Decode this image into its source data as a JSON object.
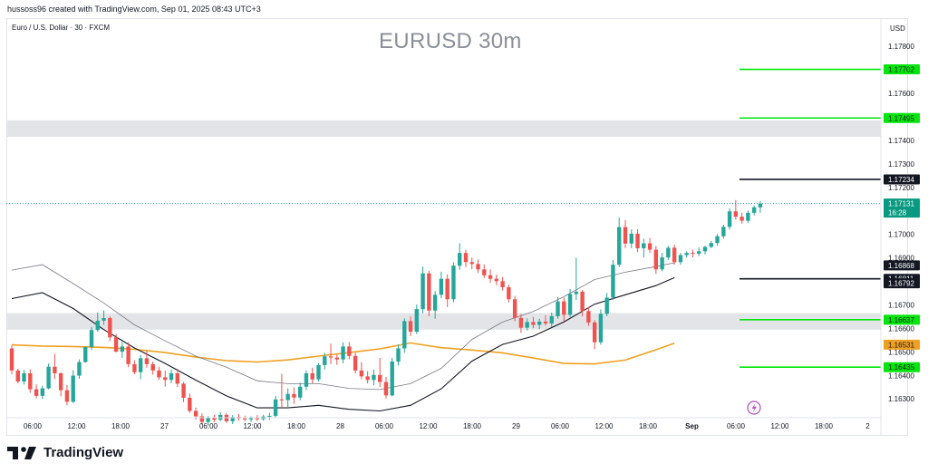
{
  "header": {
    "attribution": "hussoss96 created with TradingView.com, Sep 01, 2025 08:43 UTC+3",
    "symbol": "Euro / U.S. Dollar · 30 · FXCM",
    "title": "EURUSD 30m",
    "currency": "USD",
    "brand": "TradingView"
  },
  "colors": {
    "up": "#26a69a",
    "down": "#ef5350",
    "level_green": "#00e60a",
    "level_black": "#131722",
    "zone": "#e3e4e8",
    "ma_orange": "#f0a020",
    "ma_dark": "#131722",
    "ma_grey": "#787b86",
    "price_tag": "#089981"
  },
  "chart_data": {
    "type": "candlestick",
    "title": "EURUSD 30m",
    "ylim": [
      1.1622,
      1.1792
    ],
    "y_ticks": [
      "1.17800",
      "1.17700",
      "1.17600",
      "1.17500",
      "1.17400",
      "1.17300",
      "1.17200",
      "1.17000",
      "1.16900",
      "1.16700",
      "1.16600",
      "1.16500",
      "1.16400",
      "1.16300"
    ],
    "x_ticks": [
      "06:00",
      "12:00",
      "18:00",
      "27",
      "06:00",
      "12:00",
      "18:00",
      "28",
      "06:00",
      "12:00",
      "18:00",
      "29",
      "06:00",
      "12:00",
      "18:00",
      "Sep",
      "06:00",
      "12:00",
      "18:00",
      "2"
    ],
    "levels": [
      {
        "price": 1.17702,
        "label": "1.17702",
        "style": "green"
      },
      {
        "price": 1.17495,
        "label": "1.17495",
        "style": "green"
      },
      {
        "price": 1.17234,
        "label": "1.17234",
        "style": "black"
      },
      {
        "price": 1.16811,
        "label": "1.16811",
        "style": "black"
      },
      {
        "price": 1.16637,
        "label": "1.16637",
        "style": "green"
      },
      {
        "price": 1.16435,
        "label": "1.16435",
        "style": "green"
      }
    ],
    "zones": [
      {
        "from": 1.17415,
        "to": 1.17485
      },
      {
        "from": 1.16595,
        "to": 1.16665
      }
    ],
    "axis_tags": [
      {
        "price": 1.16868,
        "label": "1.16868",
        "style": "black"
      },
      {
        "price": 1.16792,
        "label": "1.16792",
        "style": "black"
      },
      {
        "price": 1.16531,
        "label": "1.16531",
        "style": "orange"
      }
    ],
    "last_price": {
      "price": 1.17131,
      "label": "1.17131",
      "countdown": "16:28"
    },
    "series": [
      {
        "kind": "ma_orange",
        "points": [
          [
            0,
            1.1653
          ],
          [
            5,
            1.16525
          ],
          [
            10,
            1.16523
          ],
          [
            15,
            1.16519
          ],
          [
            20,
            1.16511
          ],
          [
            25,
            1.16497
          ],
          [
            30,
            1.16478
          ],
          [
            35,
            1.16463
          ],
          [
            40,
            1.16457
          ],
          [
            45,
            1.16466
          ],
          [
            50,
            1.16482
          ],
          [
            55,
            1.16497
          ],
          [
            60,
            1.16513
          ],
          [
            65,
            1.16538
          ],
          [
            70,
            1.16518
          ],
          [
            75,
            1.16508
          ],
          [
            80,
            1.16496
          ],
          [
            85,
            1.16474
          ],
          [
            90,
            1.16451
          ],
          [
            95,
            1.16449
          ],
          [
            100,
            1.16465
          ],
          [
            105,
            1.16509
          ],
          [
            108,
            1.16537
          ]
        ]
      },
      {
        "kind": "ma_dark",
        "points": [
          [
            0,
            1.16727
          ],
          [
            5,
            1.16752
          ],
          [
            10,
            1.16685
          ],
          [
            15,
            1.16595
          ],
          [
            20,
            1.16517
          ],
          [
            25,
            1.16451
          ],
          [
            30,
            1.1638
          ],
          [
            35,
            1.16313
          ],
          [
            40,
            1.16262
          ],
          [
            45,
            1.16262
          ],
          [
            50,
            1.16273
          ],
          [
            55,
            1.16256
          ],
          [
            60,
            1.16249
          ],
          [
            65,
            1.16273
          ],
          [
            70,
            1.16343
          ],
          [
            75,
            1.16461
          ],
          [
            80,
            1.16532
          ],
          [
            85,
            1.16567
          ],
          [
            90,
            1.16628
          ],
          [
            95,
            1.16703
          ],
          [
            100,
            1.16743
          ],
          [
            105,
            1.16782
          ],
          [
            108,
            1.16816
          ]
        ]
      },
      {
        "kind": "ma_grey",
        "points": [
          [
            0,
            1.16848
          ],
          [
            5,
            1.16871
          ],
          [
            10,
            1.16791
          ],
          [
            15,
            1.16708
          ],
          [
            20,
            1.16615
          ],
          [
            25,
            1.16547
          ],
          [
            30,
            1.16482
          ],
          [
            35,
            1.16435
          ],
          [
            40,
            1.16377
          ],
          [
            45,
            1.16365
          ],
          [
            50,
            1.16365
          ],
          [
            55,
            1.16345
          ],
          [
            60,
            1.1634
          ],
          [
            65,
            1.16365
          ],
          [
            70,
            1.1643
          ],
          [
            75,
            1.16553
          ],
          [
            80,
            1.16627
          ],
          [
            85,
            1.16672
          ],
          [
            90,
            1.16735
          ],
          [
            95,
            1.16808
          ],
          [
            100,
            1.16839
          ],
          [
            105,
            1.16863
          ],
          [
            108,
            1.16879
          ]
        ]
      }
    ],
    "candles": [
      [
        1.16515,
        1.16528,
        1.16405,
        1.16421
      ],
      [
        1.16421,
        1.16428,
        1.16366,
        1.16374
      ],
      [
        1.16374,
        1.16423,
        1.16361,
        1.16409
      ],
      [
        1.16409,
        1.16426,
        1.16326,
        1.16341
      ],
      [
        1.16341,
        1.16362,
        1.16302,
        1.16313
      ],
      [
        1.16313,
        1.16357,
        1.16299,
        1.16345
      ],
      [
        1.16345,
        1.16451,
        1.16341,
        1.16437
      ],
      [
        1.16437,
        1.16492,
        1.16384,
        1.16409
      ],
      [
        1.16409,
        1.16413,
        1.16311,
        1.16337
      ],
      [
        1.16337,
        1.16359,
        1.16273,
        1.16288
      ],
      [
        1.16288,
        1.16422,
        1.16283,
        1.16399
      ],
      [
        1.16399,
        1.16468,
        1.16386,
        1.16457
      ],
      [
        1.16457,
        1.16524,
        1.16454,
        1.16521
      ],
      [
        1.16521,
        1.16606,
        1.16508,
        1.16593
      ],
      [
        1.16593,
        1.16668,
        1.16586,
        1.16633
      ],
      [
        1.16633,
        1.16676,
        1.16615,
        1.16644
      ],
      [
        1.16644,
        1.16651,
        1.16545,
        1.16562
      ],
      [
        1.16562,
        1.16576,
        1.16498,
        1.16501
      ],
      [
        1.16501,
        1.16542,
        1.16475,
        1.16523
      ],
      [
        1.16523,
        1.16541,
        1.16435,
        1.16448
      ],
      [
        1.16448,
        1.16465,
        1.16405,
        1.16414
      ],
      [
        1.16414,
        1.16487,
        1.16384,
        1.16473
      ],
      [
        1.16473,
        1.16504,
        1.16433,
        1.16448
      ],
      [
        1.16448,
        1.16459,
        1.16403,
        1.16421
      ],
      [
        1.16421,
        1.16437,
        1.16381,
        1.16392
      ],
      [
        1.16392,
        1.16421,
        1.16352,
        1.16381
      ],
      [
        1.16381,
        1.16425,
        1.16367,
        1.16409
      ],
      [
        1.16409,
        1.16428,
        1.16351,
        1.16365
      ],
      [
        1.16365,
        1.16372,
        1.16286,
        1.16305
      ],
      [
        1.16305,
        1.16323,
        1.16241,
        1.16249
      ],
      [
        1.16249,
        1.16263,
        1.16212,
        1.16226
      ],
      [
        1.16226,
        1.16238,
        1.16191,
        1.16202
      ],
      [
        1.16202,
        1.16227,
        1.16188,
        1.16219
      ],
      [
        1.16219,
        1.16233,
        1.16201,
        1.16211
      ],
      [
        1.16211,
        1.16244,
        1.16206,
        1.16232
      ],
      [
        1.16232,
        1.16239,
        1.16198,
        1.16205
      ],
      [
        1.16205,
        1.16231,
        1.16193,
        1.16223
      ],
      [
        1.16223,
        1.16236,
        1.16209,
        1.16217
      ],
      [
        1.16217,
        1.16229,
        1.16205,
        1.16213
      ],
      [
        1.16213,
        1.16226,
        1.16202,
        1.16219
      ],
      [
        1.16219,
        1.16231,
        1.16206,
        1.16214
      ],
      [
        1.16214,
        1.16232,
        1.16208,
        1.16225
      ],
      [
        1.16225,
        1.16241,
        1.16211,
        1.16228
      ],
      [
        1.16228,
        1.16312,
        1.16219,
        1.16298
      ],
      [
        1.16298,
        1.16407,
        1.16262,
        1.16295
      ],
      [
        1.16295,
        1.16345,
        1.16266,
        1.16321
      ],
      [
        1.16321,
        1.16349,
        1.16279,
        1.16306
      ],
      [
        1.16306,
        1.16369,
        1.16294,
        1.16352
      ],
      [
        1.16352,
        1.16421,
        1.16338,
        1.16409
      ],
      [
        1.16409,
        1.16433,
        1.16366,
        1.16383
      ],
      [
        1.16383,
        1.16452,
        1.16375,
        1.16444
      ],
      [
        1.16444,
        1.16497,
        1.16425,
        1.16481
      ],
      [
        1.16481,
        1.16535,
        1.16448,
        1.16476
      ],
      [
        1.16476,
        1.16488,
        1.16445,
        1.16468
      ],
      [
        1.16468,
        1.16541,
        1.16452,
        1.16523
      ],
      [
        1.16523,
        1.16542,
        1.16469,
        1.16483
      ],
      [
        1.16483,
        1.16496,
        1.16408,
        1.16421
      ],
      [
        1.16421,
        1.16457,
        1.16384,
        1.16396
      ],
      [
        1.16396,
        1.16418,
        1.16366,
        1.16381
      ],
      [
        1.16381,
        1.16425,
        1.16358,
        1.16402
      ],
      [
        1.16402,
        1.16475,
        1.16351,
        1.16372
      ],
      [
        1.16372,
        1.16394,
        1.16302,
        1.16315
      ],
      [
        1.16315,
        1.16474,
        1.16311,
        1.16459
      ],
      [
        1.16459,
        1.16532,
        1.16442,
        1.16515
      ],
      [
        1.16515,
        1.16643,
        1.16496,
        1.16631
      ],
      [
        1.16631,
        1.16651,
        1.16567,
        1.16586
      ],
      [
        1.16586,
        1.16701,
        1.16576,
        1.16682
      ],
      [
        1.16682,
        1.16863,
        1.16665,
        1.16834
      ],
      [
        1.16834,
        1.16845,
        1.16652,
        1.16676
      ],
      [
        1.16676,
        1.16759,
        1.16641,
        1.16743
      ],
      [
        1.16743,
        1.16841,
        1.16728,
        1.16811
      ],
      [
        1.16811,
        1.16829,
        1.16691,
        1.16724
      ],
      [
        1.16724,
        1.16881,
        1.16711,
        1.16867
      ],
      [
        1.16867,
        1.16962,
        1.16849,
        1.16921
      ],
      [
        1.16921,
        1.16934,
        1.16861,
        1.16882
      ],
      [
        1.16882,
        1.16901,
        1.16852,
        1.16874
      ],
      [
        1.16874,
        1.16893,
        1.16836,
        1.16851
      ],
      [
        1.16851,
        1.16872,
        1.16815,
        1.16826
      ],
      [
        1.16826,
        1.16851,
        1.16794,
        1.16811
      ],
      [
        1.16811,
        1.16829,
        1.16784,
        1.16801
      ],
      [
        1.16801,
        1.16818,
        1.16761,
        1.16775
      ],
      [
        1.16775,
        1.16786,
        1.16711,
        1.16724
      ],
      [
        1.16724,
        1.16738,
        1.16631,
        1.16645
      ],
      [
        1.16645,
        1.16661,
        1.16581,
        1.16603
      ],
      [
        1.16603,
        1.16642,
        1.16591,
        1.16627
      ],
      [
        1.16627,
        1.16649,
        1.16601,
        1.16615
      ],
      [
        1.16615,
        1.16641,
        1.16597,
        1.16629
      ],
      [
        1.16629,
        1.16656,
        1.16612,
        1.16621
      ],
      [
        1.16621,
        1.16667,
        1.16606,
        1.16652
      ],
      [
        1.16652,
        1.16734,
        1.16641,
        1.16715
      ],
      [
        1.16715,
        1.16731,
        1.16631,
        1.16658
      ],
      [
        1.16658,
        1.16768,
        1.16649,
        1.16746
      ],
      [
        1.16746,
        1.16901,
        1.16721,
        1.16756
      ],
      [
        1.16756,
        1.16764,
        1.16651,
        1.16674
      ],
      [
        1.16674,
        1.16691,
        1.16611,
        1.16625
      ],
      [
        1.16625,
        1.16635,
        1.16511,
        1.16541
      ],
      [
        1.16541,
        1.16681,
        1.16531,
        1.16662
      ],
      [
        1.16662,
        1.16751,
        1.16652,
        1.16731
      ],
      [
        1.16731,
        1.16891,
        1.16721,
        1.16871
      ],
      [
        1.16871,
        1.17071,
        1.16861,
        1.17031
      ],
      [
        1.17031,
        1.17061,
        1.16942,
        1.16961
      ],
      [
        1.16961,
        1.17021,
        1.16941,
        1.17003
      ],
      [
        1.17003,
        1.17022,
        1.16925,
        1.16941
      ],
      [
        1.16941,
        1.16981,
        1.16902,
        1.16962
      ],
      [
        1.16962,
        1.16985,
        1.16921,
        1.16935
      ],
      [
        1.16935,
        1.16951,
        1.16832,
        1.16851
      ],
      [
        1.16851,
        1.16921,
        1.16843,
        1.16902
      ],
      [
        1.16902,
        1.16951,
        1.16891,
        1.16943
      ],
      [
        1.16943,
        1.16956,
        1.16871,
        1.16882
      ],
      [
        1.16882,
        1.16921,
        1.16871,
        1.16912
      ],
      [
        1.16912,
        1.16928,
        1.16901,
        1.16921
      ],
      [
        1.16921,
        1.16935,
        1.16902,
        1.16918
      ],
      [
        1.16918,
        1.16945,
        1.16908,
        1.16928
      ],
      [
        1.16928,
        1.16951,
        1.16915,
        1.16947
      ],
      [
        1.16947,
        1.16972,
        1.16941,
        1.16963
      ],
      [
        1.16963,
        1.17001,
        1.16951,
        1.16992
      ],
      [
        1.16992,
        1.17041,
        1.16982,
        1.17032
      ],
      [
        1.17032,
        1.17111,
        1.17021,
        1.17098
      ],
      [
        1.17098,
        1.17146,
        1.17063,
        1.17075
      ],
      [
        1.17075,
        1.17092,
        1.17046,
        1.17058
      ],
      [
        1.17058,
        1.17101,
        1.17049,
        1.17092
      ],
      [
        1.17092,
        1.17123,
        1.17081,
        1.17115
      ],
      [
        1.17115,
        1.17141,
        1.17092,
        1.17131
      ]
    ]
  }
}
